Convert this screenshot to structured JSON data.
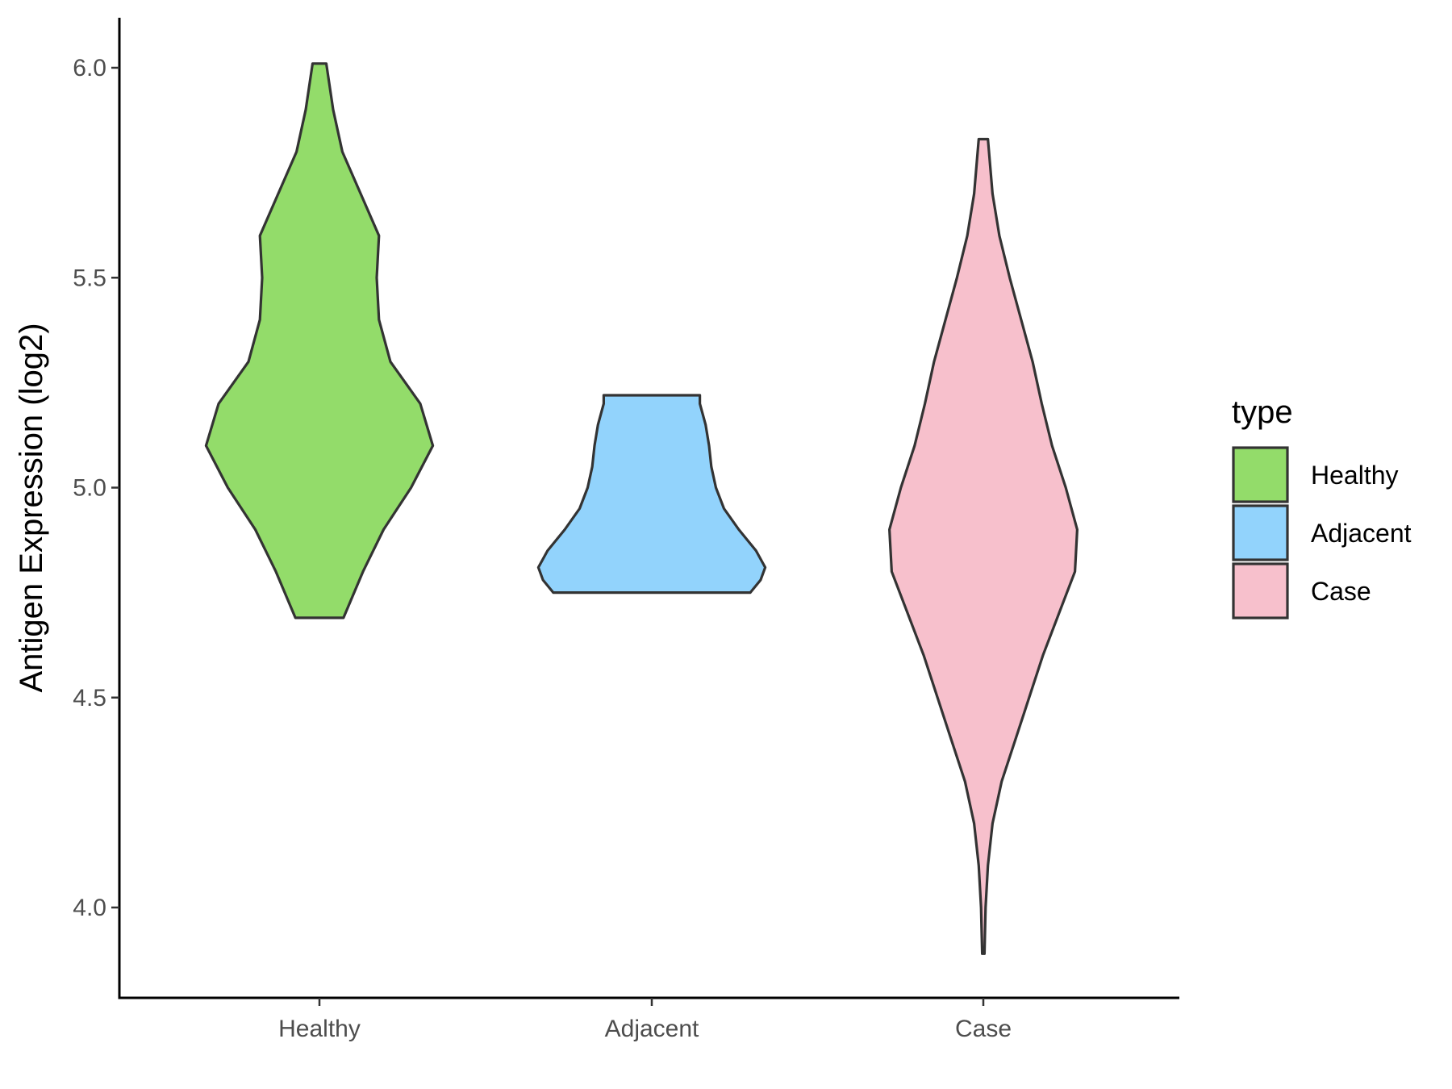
{
  "chart_data": {
    "type": "violin",
    "title": "",
    "xlabel": "",
    "ylabel": "Antigen Expression (log2)",
    "ylim": [
      3.78,
      6.12
    ],
    "yticks": [
      4.0,
      4.5,
      5.0,
      5.5,
      6.0
    ],
    "ytick_labels": [
      "4.0",
      "4.5",
      "5.0",
      "5.5",
      "6.0"
    ],
    "categories": [
      "Healthy",
      "Adjacent",
      "Case"
    ],
    "grid": false,
    "legend": {
      "title": "type",
      "position": "right",
      "entries": [
        "Healthy",
        "Adjacent",
        "Case"
      ]
    },
    "series": [
      {
        "category": "Healthy",
        "color": "#93DC6A",
        "outline": "#333333",
        "min": 4.69,
        "max": 6.01,
        "profile": [
          [
            4.69,
            0.21
          ],
          [
            4.8,
            0.38
          ],
          [
            4.9,
            0.56
          ],
          [
            5.0,
            0.8
          ],
          [
            5.1,
            0.99
          ],
          [
            5.2,
            0.88
          ],
          [
            5.3,
            0.62
          ],
          [
            5.4,
            0.52
          ],
          [
            5.5,
            0.5
          ],
          [
            5.6,
            0.52
          ],
          [
            5.7,
            0.36
          ],
          [
            5.8,
            0.2
          ],
          [
            5.9,
            0.12
          ],
          [
            6.01,
            0.06
          ]
        ]
      },
      {
        "category": "Adjacent",
        "color": "#92D3FC",
        "outline": "#333333",
        "min": 4.75,
        "max": 5.22,
        "profile": [
          [
            4.75,
            0.86
          ],
          [
            4.78,
            0.95
          ],
          [
            4.81,
            0.99
          ],
          [
            4.85,
            0.91
          ],
          [
            4.9,
            0.76
          ],
          [
            4.95,
            0.63
          ],
          [
            5.0,
            0.56
          ],
          [
            5.05,
            0.52
          ],
          [
            5.1,
            0.5
          ],
          [
            5.15,
            0.47
          ],
          [
            5.2,
            0.42
          ],
          [
            5.22,
            0.42
          ]
        ]
      },
      {
        "category": "Case",
        "color": "#F7C0CC",
        "outline": "#333333",
        "min": 3.89,
        "max": 5.83,
        "profile": [
          [
            3.89,
            0.01
          ],
          [
            4.0,
            0.02
          ],
          [
            4.1,
            0.04
          ],
          [
            4.2,
            0.08
          ],
          [
            4.3,
            0.16
          ],
          [
            4.4,
            0.28
          ],
          [
            4.5,
            0.4
          ],
          [
            4.6,
            0.52
          ],
          [
            4.7,
            0.66
          ],
          [
            4.8,
            0.8
          ],
          [
            4.9,
            0.82
          ],
          [
            5.0,
            0.72
          ],
          [
            5.1,
            0.6
          ],
          [
            5.2,
            0.51
          ],
          [
            5.3,
            0.43
          ],
          [
            5.4,
            0.33
          ],
          [
            5.5,
            0.23
          ],
          [
            5.6,
            0.14
          ],
          [
            5.7,
            0.08
          ],
          [
            5.83,
            0.04
          ]
        ]
      }
    ]
  }
}
